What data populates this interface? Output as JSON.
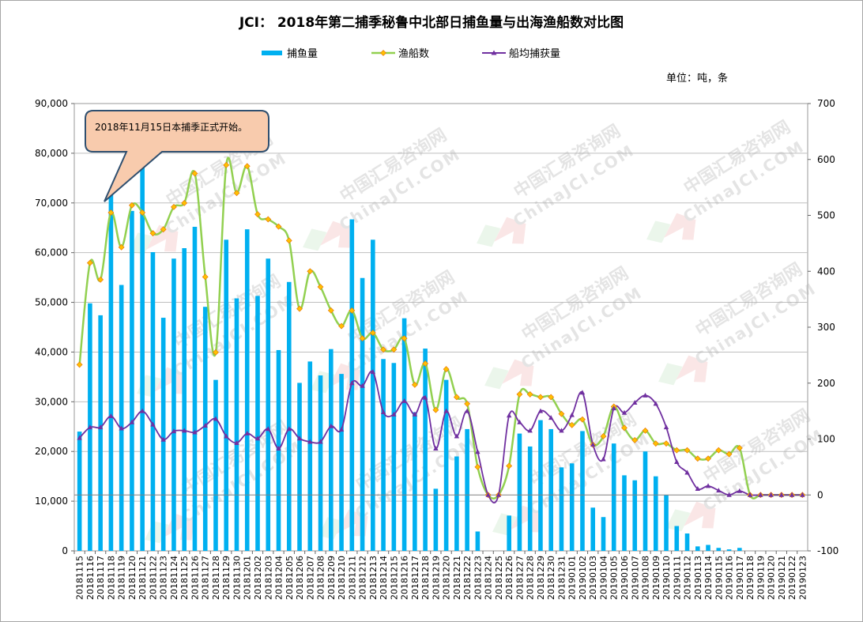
{
  "title": "JCI： 2018年第二捕季秘鲁中北部日捕鱼量与出海渔船数对比图",
  "unit_label": "单位：吨，条",
  "annotation": "2018年11月15日本捕季正式开始。",
  "watermark_cn": "中国汇易咨询网",
  "watermark_en": "ChinaJCI.COM",
  "colors": {
    "catch": "#00b0f0",
    "boats": "#92d050",
    "boats_marker": "#ffc000",
    "avg": "#7030a0",
    "grid": "#bfbfbf",
    "callout_fill": "#f8cbad",
    "callout_stroke": "#2f4f6f"
  },
  "chart_data": {
    "type": "bar+line",
    "legend_position": "top",
    "grid": true,
    "categories": [
      "20181115",
      "20181116",
      "20181117",
      "20181118",
      "20181119",
      "20181120",
      "20181121",
      "20181122",
      "20181123",
      "20181124",
      "20181125",
      "20181126",
      "20181127",
      "20181128",
      "20181129",
      "20181130",
      "20181201",
      "20181202",
      "20181203",
      "20181204",
      "20181205",
      "20181206",
      "20181207",
      "20181208",
      "20181209",
      "20181210",
      "20181211",
      "20181212",
      "20181213",
      "20181214",
      "20181215",
      "20181216",
      "20181217",
      "20181218",
      "20181219",
      "20181220",
      "20181221",
      "20181222",
      "20181223",
      "20181224",
      "20181225",
      "20181226",
      "20181227",
      "20181228",
      "20181229",
      "20181230",
      "20181231",
      "20190101",
      "20190102",
      "20190103",
      "20190104",
      "20190105",
      "20190106",
      "20190107",
      "20190108",
      "20190109",
      "20190110",
      "20190111",
      "20190112",
      "20190113",
      "20190114",
      "20190115",
      "20190116",
      "20190117",
      "20190118",
      "20190119",
      "20190120",
      "20190121",
      "20190122",
      "20190123"
    ],
    "y_left": {
      "min": 0,
      "max": 90000,
      "step": 10000,
      "ticks": [
        "0",
        "10,000",
        "20,000",
        "30,000",
        "40,000",
        "50,000",
        "60,000",
        "70,000",
        "80,000",
        "90,000"
      ]
    },
    "y_right": {
      "min": -100,
      "max": 700,
      "step": 100,
      "ticks": [
        "-100",
        "0",
        "100",
        "200",
        "300",
        "400",
        "500",
        "600",
        "700"
      ]
    },
    "series": [
      {
        "name": "捕鱼量",
        "type": "bar",
        "axis": "left",
        "values": [
          24000,
          49800,
          47400,
          72500,
          53500,
          68400,
          77200,
          60100,
          46900,
          58800,
          60900,
          65200,
          49100,
          34400,
          62600,
          50800,
          64700,
          51300,
          58800,
          40400,
          54100,
          33800,
          38100,
          35300,
          40600,
          35600,
          66700,
          54900,
          62600,
          38600,
          37800,
          46800,
          27900,
          40700,
          12500,
          34400,
          19000,
          24500,
          3900,
          0,
          0,
          7100,
          23600,
          21000,
          26300,
          24500,
          16800,
          17600,
          24100,
          8700,
          6800,
          21600,
          15200,
          14200,
          20000,
          15000,
          11200,
          5000,
          3500,
          900,
          1200,
          600,
          300,
          600,
          0,
          0,
          0,
          0,
          0,
          0
        ]
      },
      {
        "name": "渔船数",
        "type": "line",
        "axis": "right",
        "values": [
          233,
          415,
          385,
          505,
          443,
          518,
          505,
          468,
          475,
          515,
          522,
          575,
          390,
          255,
          590,
          540,
          588,
          502,
          493,
          480,
          455,
          333,
          400,
          372,
          330,
          302,
          330,
          280,
          290,
          260,
          260,
          280,
          197,
          235,
          152,
          225,
          175,
          163,
          50,
          0,
          0,
          52,
          180,
          180,
          175,
          175,
          145,
          125,
          135,
          90,
          105,
          158,
          120,
          98,
          115,
          92,
          92,
          80,
          80,
          65,
          65,
          80,
          73,
          84,
          0,
          0,
          0,
          0,
          0,
          0
        ]
      },
      {
        "name": "船均捕获量",
        "type": "line",
        "axis": "right",
        "values": [
          102,
          121,
          121,
          141,
          119,
          130,
          150,
          126,
          99,
          114,
          115,
          112,
          124,
          136,
          105,
          93,
          110,
          101,
          118,
          83,
          118,
          101,
          95,
          95,
          123,
          117,
          200,
          195,
          220,
          148,
          144,
          168,
          144,
          174,
          83,
          150,
          105,
          150,
          77,
          0,
          0,
          142,
          130,
          115,
          150,
          138,
          115,
          143,
          183,
          90,
          64,
          155,
          147,
          165,
          178,
          163,
          121,
          59,
          40,
          11,
          16,
          8,
          0,
          7,
          0,
          0,
          0,
          0,
          0,
          0
        ]
      }
    ]
  }
}
